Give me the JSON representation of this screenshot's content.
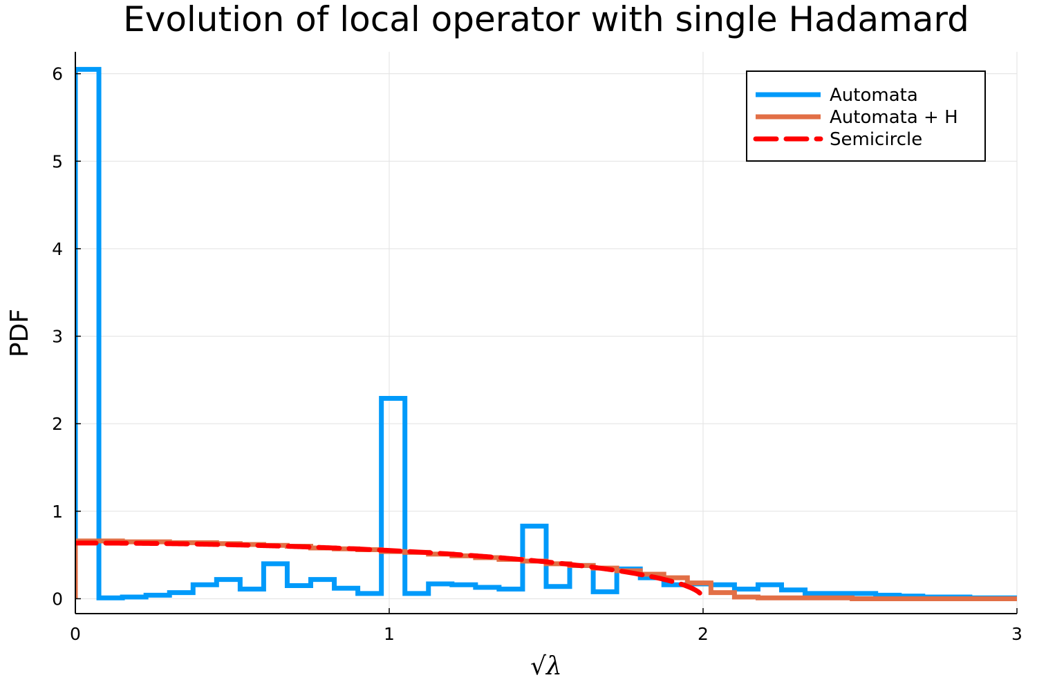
{
  "chart_data": {
    "type": "line",
    "title": "Evolution of local operator with single Hadamard",
    "xlabel": "√λ",
    "ylabel": "PDF",
    "xlim": [
      0,
      3
    ],
    "ylim": [
      -0.17,
      6.25
    ],
    "xticks": [
      0,
      1,
      2,
      3
    ],
    "yticks": [
      0,
      1,
      2,
      3,
      4,
      5,
      6
    ],
    "grid": true,
    "legend_position": "top-right",
    "series": [
      {
        "name": "Automata",
        "color": "#009AFA",
        "style": "step",
        "bin_edges": [
          0,
          0.075,
          0.15,
          0.225,
          0.3,
          0.375,
          0.45,
          0.525,
          0.6,
          0.675,
          0.75,
          0.825,
          0.9,
          0.975,
          1.05,
          1.125,
          1.2,
          1.275,
          1.35,
          1.425,
          1.5,
          1.575,
          1.65,
          1.725,
          1.8,
          1.875,
          1.95,
          2.025,
          2.1,
          2.175,
          2.25,
          2.325,
          2.4,
          2.475,
          2.55,
          2.625,
          2.7,
          2.775,
          2.85,
          2.925,
          3.0
        ],
        "values": [
          6.05,
          0.01,
          0.02,
          0.04,
          0.07,
          0.16,
          0.22,
          0.11,
          0.4,
          0.15,
          0.22,
          0.12,
          0.06,
          2.29,
          0.06,
          0.17,
          0.16,
          0.13,
          0.11,
          0.83,
          0.14,
          0.38,
          0.08,
          0.34,
          0.24,
          0.16,
          0.17,
          0.16,
          0.11,
          0.16,
          0.1,
          0.06,
          0.06,
          0.06,
          0.04,
          0.03,
          0.02,
          0.02,
          0.01,
          0.01
        ]
      },
      {
        "name": "Automata + H",
        "color": "#E26F46",
        "style": "step",
        "bin_edges": [
          0,
          0.075,
          0.15,
          0.225,
          0.3,
          0.375,
          0.45,
          0.525,
          0.6,
          0.675,
          0.75,
          0.825,
          0.9,
          0.975,
          1.05,
          1.125,
          1.2,
          1.275,
          1.35,
          1.425,
          1.5,
          1.575,
          1.65,
          1.725,
          1.8,
          1.875,
          1.95,
          2.025,
          2.1,
          2.175,
          2.25,
          2.325,
          2.4,
          2.475,
          2.55,
          2.625,
          2.7,
          2.775,
          2.85,
          2.925,
          3.0
        ],
        "values": [
          0.66,
          0.66,
          0.65,
          0.65,
          0.64,
          0.64,
          0.63,
          0.62,
          0.61,
          0.6,
          0.58,
          0.57,
          0.56,
          0.54,
          0.53,
          0.51,
          0.49,
          0.47,
          0.45,
          0.43,
          0.4,
          0.38,
          0.35,
          0.32,
          0.28,
          0.24,
          0.18,
          0.07,
          0.02,
          0.01,
          0.01,
          0.01,
          0.01,
          0.0,
          0.0,
          0.0,
          0.0,
          0.0,
          0.0,
          0.0
        ]
      },
      {
        "name": "Semicircle",
        "color": "#FF0000",
        "style": "dashed",
        "function": "sqrt(4 - x^2) / pi",
        "x_range": [
          0,
          2
        ]
      }
    ]
  }
}
